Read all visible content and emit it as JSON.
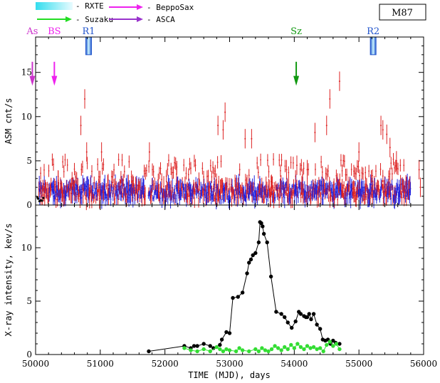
{
  "legend": {
    "items": [
      {
        "label": "- RXTE",
        "color": "#33ddee",
        "kind": "band"
      },
      {
        "label": "- Suzaku",
        "color": "#22dd22",
        "kind": "arrow"
      },
      {
        "label": "- BeppoSax",
        "color": "#ee22ee",
        "kind": "arrow"
      },
      {
        "label": "- ASCA",
        "color": "#9933cc",
        "kind": "arrow"
      }
    ],
    "source_label": "M87"
  },
  "markers": [
    {
      "label": "As",
      "mjd": 49950,
      "color": "#cc33cc",
      "arrow": true
    },
    {
      "label": "BS",
      "mjd": 50290,
      "color": "#ee22ee",
      "arrow": true
    },
    {
      "label": "R1",
      "mjd": 50820,
      "color": "#2255cc",
      "arrow": false
    },
    {
      "label": "Sz",
      "mjd": 54030,
      "color": "#119911",
      "arrow": true
    },
    {
      "label": "R2",
      "mjd": 55220,
      "color": "#2255cc",
      "arrow": false
    }
  ],
  "chart_data": [
    {
      "type": "scatter",
      "panel": "top",
      "ylabel": "ASM cnt/s",
      "xlim": [
        50000,
        56000
      ],
      "ylim": [
        0,
        19
      ],
      "yticks": [
        0,
        5,
        10,
        15
      ],
      "series": [
        {
          "color": "#2222dd",
          "baseline_level": 1.5
        },
        {
          "color": "#dd2222",
          "flares": [
            [
              50350,
              2.8
            ],
            [
              50700,
              9.0
            ],
            [
              50760,
              12.0
            ],
            [
              50790,
              6.0
            ],
            [
              51020,
              6.0
            ],
            [
              51760,
              6.0
            ],
            [
              52180,
              3.5
            ],
            [
              52820,
              9.0
            ],
            [
              52900,
              8.5
            ],
            [
              52930,
              10.5
            ],
            [
              53240,
              7.5
            ],
            [
              53340,
              7.5
            ],
            [
              53880,
              4.0
            ],
            [
              54040,
              4.5
            ],
            [
              54200,
              4.0
            ],
            [
              54320,
              8.2
            ],
            [
              54500,
              9.0
            ],
            [
              54550,
              12.0
            ],
            [
              54700,
              14.0
            ],
            [
              55000,
              6.0
            ],
            [
              55340,
              9.0
            ],
            [
              55370,
              8.5
            ],
            [
              55430,
              8.0
            ],
            [
              55480,
              6.5
            ],
            [
              55580,
              5.0
            ],
            [
              55930,
              4.0
            ],
            [
              55950,
              2.0
            ]
          ]
        }
      ]
    },
    {
      "type": "line",
      "panel": "bottom",
      "xlabel": "TIME (MJD), days",
      "ylabel": "X-ray intensity, kev/s",
      "xlim": [
        50000,
        56000
      ],
      "ylim": [
        0,
        14
      ],
      "xticks": [
        50000,
        51000,
        52000,
        53000,
        54000,
        55000,
        56000
      ],
      "yticks": [
        0,
        5,
        10
      ],
      "series": [
        {
          "color": "#000000",
          "points": [
            [
              51750,
              0.3
            ],
            [
              52300,
              0.8
            ],
            [
              52400,
              0.6
            ],
            [
              52450,
              0.8
            ],
            [
              52500,
              0.8
            ],
            [
              52600,
              1.0
            ],
            [
              52700,
              0.8
            ],
            [
              52750,
              0.6
            ],
            [
              52850,
              0.9
            ],
            [
              52880,
              1.4
            ],
            [
              52950,
              2.1
            ],
            [
              53000,
              2.0
            ],
            [
              53050,
              5.3
            ],
            [
              53130,
              5.4
            ],
            [
              53200,
              5.8
            ],
            [
              53270,
              7.6
            ],
            [
              53300,
              8.6
            ],
            [
              53330,
              8.9
            ],
            [
              53360,
              9.3
            ],
            [
              53400,
              9.5
            ],
            [
              53450,
              10.5
            ],
            [
              53470,
              12.4
            ],
            [
              53490,
              12.3
            ],
            [
              53510,
              12.0
            ],
            [
              53530,
              11.3
            ],
            [
              53580,
              10.5
            ],
            [
              53640,
              7.3
            ],
            [
              53720,
              4.0
            ],
            [
              53800,
              3.8
            ],
            [
              53850,
              3.5
            ],
            [
              53900,
              3.0
            ],
            [
              53960,
              2.5
            ],
            [
              54020,
              3.1
            ],
            [
              54070,
              4.0
            ],
            [
              54100,
              3.8
            ],
            [
              54150,
              3.6
            ],
            [
              54180,
              3.5
            ],
            [
              54200,
              3.5
            ],
            [
              54230,
              3.8
            ],
            [
              54260,
              3.3
            ],
            [
              54300,
              3.8
            ],
            [
              54350,
              2.8
            ],
            [
              54400,
              2.4
            ],
            [
              54440,
              1.4
            ],
            [
              54480,
              1.3
            ],
            [
              54520,
              1.4
            ],
            [
              54560,
              1.0
            ],
            [
              54600,
              1.3
            ],
            [
              54640,
              1.1
            ],
            [
              54700,
              1.0
            ]
          ]
        },
        {
          "color": "#33dd33",
          "points": [
            [
              52300,
              0.6
            ],
            [
              52400,
              0.4
            ],
            [
              52500,
              0.3
            ],
            [
              52600,
              0.5
            ],
            [
              52700,
              0.3
            ],
            [
              52800,
              0.7
            ],
            [
              52850,
              0.5
            ],
            [
              52900,
              0.3
            ],
            [
              52950,
              0.5
            ],
            [
              53000,
              0.4
            ],
            [
              53100,
              0.3
            ],
            [
              53150,
              0.6
            ],
            [
              53200,
              0.4
            ],
            [
              53300,
              0.3
            ],
            [
              53400,
              0.5
            ],
            [
              53450,
              0.3
            ],
            [
              53500,
              0.6
            ],
            [
              53550,
              0.4
            ],
            [
              53600,
              0.3
            ],
            [
              53650,
              0.5
            ],
            [
              53700,
              0.8
            ],
            [
              53750,
              0.6
            ],
            [
              53800,
              0.4
            ],
            [
              53850,
              0.7
            ],
            [
              53900,
              0.5
            ],
            [
              53950,
              0.9
            ],
            [
              54000,
              0.6
            ],
            [
              54050,
              1.0
            ],
            [
              54100,
              0.7
            ],
            [
              54150,
              0.5
            ],
            [
              54200,
              0.8
            ],
            [
              54250,
              0.6
            ],
            [
              54300,
              0.7
            ],
            [
              54350,
              0.5
            ],
            [
              54400,
              0.6
            ],
            [
              54450,
              0.3
            ],
            [
              54500,
              0.9
            ],
            [
              54550,
              1.2
            ],
            [
              54600,
              0.8
            ],
            [
              54650,
              1.0
            ],
            [
              54700,
              0.5
            ]
          ]
        }
      ]
    }
  ]
}
